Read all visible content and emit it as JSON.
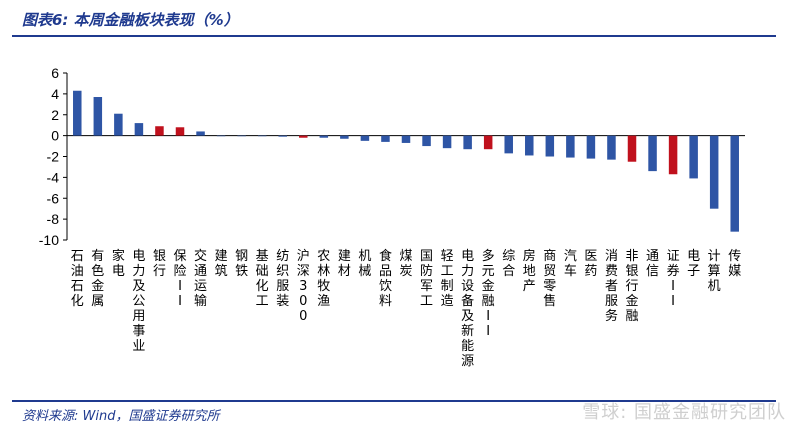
{
  "header": {
    "title": "图表6:  本周金融板块表现（%）"
  },
  "footer": {
    "source": "资料来源:  Wind，国盛证券研究所"
  },
  "watermark": {
    "text": "雪球: 国盛金融研究团队"
  },
  "colors": {
    "default": "#2e55a5",
    "highlight": "#c0111d",
    "rule": "#1f3a8f"
  },
  "chart_data": {
    "type": "bar",
    "title": "本周金融板块表现（%）",
    "ylim": [
      -10,
      6
    ],
    "yticks": [
      6,
      4,
      2,
      0,
      -2,
      -4,
      -6,
      -8,
      -10
    ],
    "grid": false,
    "categories": [
      "石油石化",
      "有色金属",
      "家电",
      "电力及公用事业",
      "银行",
      "保险II",
      "交通运输",
      "建筑",
      "钢铁",
      "基础化工",
      "纺织服装",
      "沪深300",
      "农林牧渔",
      "建材",
      "机械",
      "食品饮料",
      "煤炭",
      "国防军工",
      "轻工制造",
      "电力设备及新能源",
      "多元金融II",
      "综合",
      "房地产",
      "商贸零售",
      "汽车",
      "医药",
      "消费者服务",
      "非银行金融",
      "通信",
      "证券II",
      "电子",
      "计算机",
      "传媒"
    ],
    "values": [
      4.3,
      3.7,
      2.1,
      1.2,
      0.9,
      0.8,
      0.4,
      0.0,
      0.0,
      0.0,
      -0.1,
      -0.2,
      -0.2,
      -0.3,
      -0.5,
      -0.6,
      -0.7,
      -1.0,
      -1.2,
      -1.3,
      -1.3,
      -1.7,
      -1.9,
      -2.0,
      -2.1,
      -2.2,
      -2.3,
      -2.5,
      -3.4,
      -3.7,
      -4.1,
      -7.0,
      -9.2
    ],
    "highlight": [
      "银行",
      "保险II",
      "沪深300",
      "多元金融II",
      "非银行金融",
      "证券II"
    ]
  }
}
